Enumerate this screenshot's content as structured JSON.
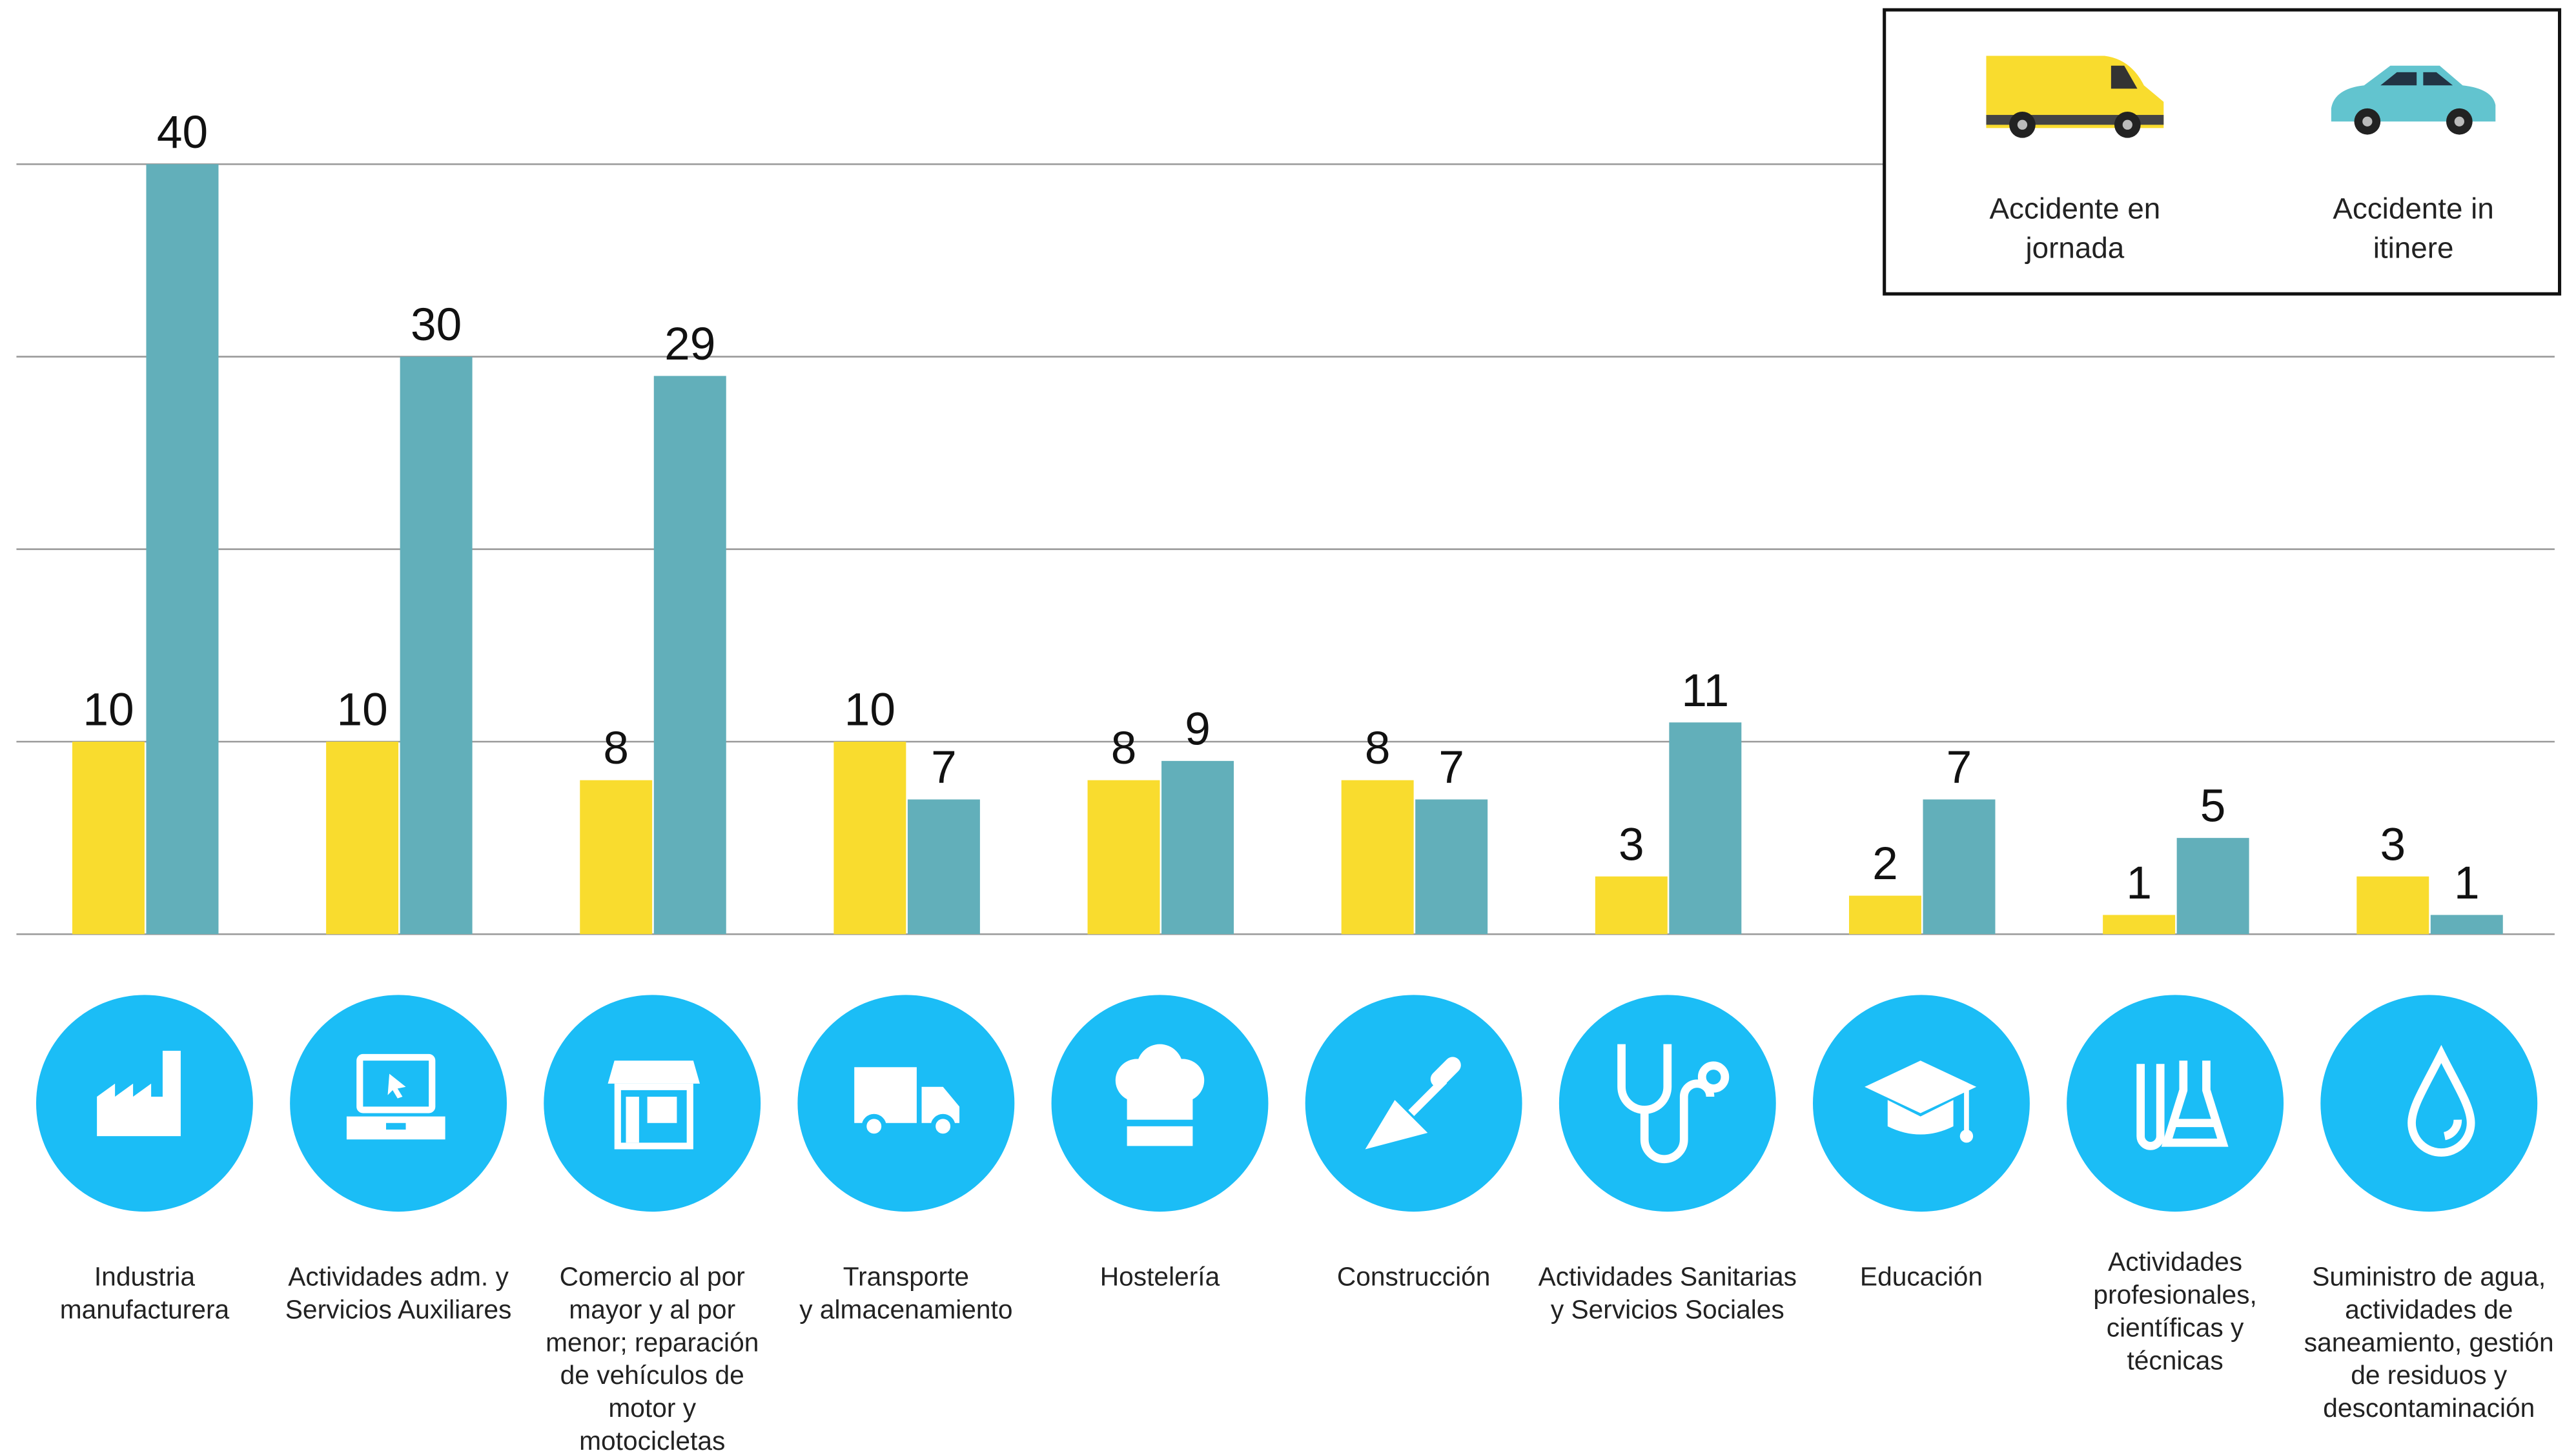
{
  "chart_data": {
    "type": "bar",
    "categories": [
      "Industria\nmanufacturera",
      "Actividades adm. y\nServicios Auxiliares",
      "Comercio al por\nmayor y al por\nmenor; reparación\nde vehículos de\nmotor y\nmotocicletas",
      "Transporte\ny almacenamiento",
      "Hostelería",
      "Construcción",
      "Actividades Sanitarias\ny Servicios Sociales",
      "Educación",
      "Actividades\nprofesionales,\ncientíficas y\ntécnicas",
      "Suministro de agua,\nactividades de\nsaneamiento, gestión\nde residuos y\ndescontaminación"
    ],
    "series": [
      {
        "name": "Accidente en\njornada",
        "color": "#f9dc2e",
        "values": [
          10,
          10,
          8,
          10,
          8,
          8,
          3,
          2,
          1,
          3
        ]
      },
      {
        "name": "Accidente in\nitinere",
        "color": "#62afba",
        "values": [
          40,
          30,
          29,
          7,
          9,
          7,
          11,
          7,
          5,
          1
        ]
      }
    ],
    "ylim": [
      0,
      40
    ],
    "yticks": [
      0,
      10,
      20,
      30,
      40
    ],
    "grid": true,
    "legend": "top-right"
  }
}
